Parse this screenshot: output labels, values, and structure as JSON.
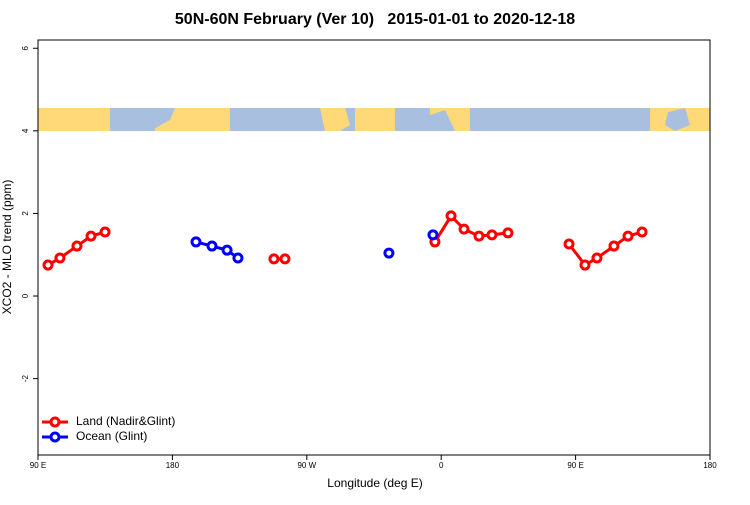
{
  "chart_data": {
    "type": "line",
    "title": "50N-60N February (Ver 10)   2015-01-01 to 2020-12-18",
    "xlabel": "Longitude (deg E)",
    "ylabel": "XCO2 - MLO trend (ppm)",
    "xlim": [
      90,
      540
    ],
    "xticks": [
      {
        "value": 90,
        "label": "90 E"
      },
      {
        "value": 180,
        "label": "180"
      },
      {
        "value": 270,
        "label": "90 W"
      },
      {
        "value": 360,
        "label": "0"
      },
      {
        "value": 450,
        "label": "90 E"
      },
      {
        "value": 540,
        "label": "180"
      }
    ],
    "ylim": [
      -3.85,
      6.2
    ],
    "yticks": [
      -2,
      0,
      2,
      4,
      6
    ],
    "legend": "bottom-left",
    "series": [
      {
        "name": "Land (Nadir&Glint)",
        "color": "#ff0000",
        "x": [
          96.7,
          104.7,
          116.1,
          125.5,
          134.9,
          190,
          248,
          255.4,
          300,
          355.8,
          366.6,
          375.3,
          385.3,
          394.0,
          404.7,
          425,
          445.6,
          456.3,
          464.3,
          475.7,
          485.1,
          494.5
        ],
        "values": [
          0.75,
          0.92,
          1.21,
          1.45,
          1.55,
          null,
          0.9,
          0.9,
          null,
          1.31,
          1.94,
          1.62,
          1.45,
          1.48,
          1.53,
          null,
          1.26,
          0.75,
          0.92,
          1.21,
          1.45,
          1.55
        ]
      },
      {
        "name": "Ocean (Glint)",
        "color": "#0000ff",
        "x": [
          195.8,
          206.5,
          216.6,
          223.9,
          280,
          325.0,
          340,
          354.5
        ],
        "values": [
          1.31,
          1.21,
          1.11,
          0.92,
          null,
          1.04,
          null,
          1.48
        ]
      }
    ]
  }
}
